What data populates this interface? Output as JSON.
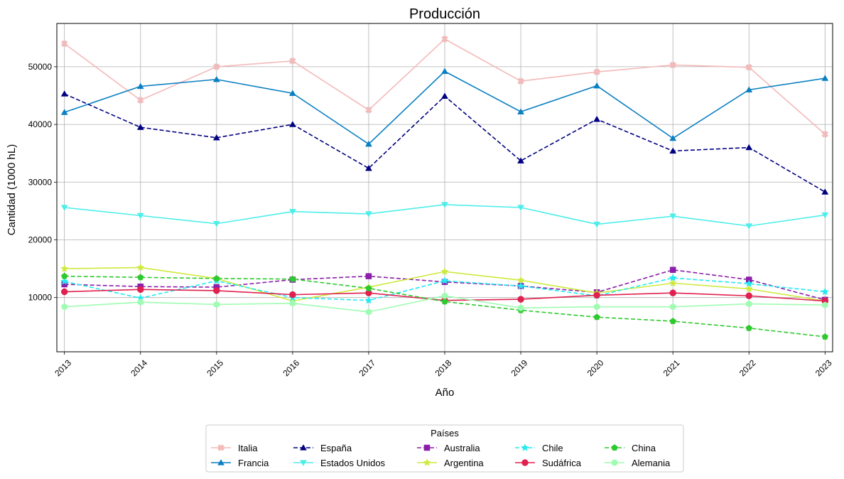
{
  "chart_data": {
    "type": "line",
    "title": "Producción",
    "xlabel": "Año",
    "ylabel": "Cantidad (1000 hL)",
    "x": [
      2013,
      2014,
      2015,
      2016,
      2017,
      2018,
      2019,
      2020,
      2021,
      2022,
      2023
    ],
    "yticks": [
      10000,
      20000,
      30000,
      40000,
      50000
    ],
    "ylim": [
      600,
      57500
    ],
    "grid": true,
    "legend": {
      "title": "Países",
      "placement": "bottom-center",
      "columns": 5
    },
    "series": [
      {
        "name": "Italia",
        "color": "#f4b9b9",
        "dash": "solid",
        "marker": "x-filled",
        "values": [
          54000,
          44200,
          50000,
          51000,
          42500,
          54800,
          47500,
          49100,
          50300,
          49900,
          38300
        ]
      },
      {
        "name": "Francia",
        "color": "#0a7fc2",
        "dash": "solid",
        "marker": "triangle-up",
        "values": [
          42100,
          46600,
          47800,
          45400,
          36600,
          49200,
          42200,
          46700,
          37600,
          46000,
          48000
        ]
      },
      {
        "name": "España",
        "color": "#000080",
        "dash": "dashed",
        "marker": "triangle-up",
        "values": [
          45300,
          39500,
          37700,
          40000,
          32400,
          44900,
          33700,
          40900,
          35400,
          36000,
          28300
        ]
      },
      {
        "name": "Estados Unidos",
        "color": "#4deeea",
        "dash": "solid",
        "marker": "triangle-down",
        "values": [
          25600,
          24200,
          22800,
          24900,
          24500,
          26100,
          25600,
          22700,
          24100,
          22400,
          24300
        ]
      },
      {
        "name": "Australia",
        "color": "#8b1fa9",
        "dash": "dashed",
        "marker": "square",
        "values": [
          12300,
          11900,
          11800,
          13100,
          13700,
          12700,
          12000,
          10900,
          14800,
          13100,
          9600
        ]
      },
      {
        "name": "Argentina",
        "color": "#cdea3c",
        "dash": "solid",
        "marker": "star",
        "values": [
          15000,
          15200,
          13300,
          9400,
          11800,
          14500,
          13000,
          10800,
          12500,
          11500,
          9400
        ]
      },
      {
        "name": "Chile",
        "color": "#22eaf2",
        "dash": "dashed",
        "marker": "star",
        "values": [
          12800,
          9900,
          12900,
          10000,
          9500,
          12900,
          12000,
          10300,
          13400,
          12400,
          11000
        ]
      },
      {
        "name": "Sudáfrica",
        "color": "#e0204f",
        "dash": "solid",
        "marker": "circle",
        "values": [
          11000,
          11400,
          11200,
          10500,
          10800,
          9500,
          9700,
          10400,
          10800,
          10300,
          9400
        ]
      },
      {
        "name": "China",
        "color": "#2ec92e",
        "dash": "dashed",
        "marker": "pentagon",
        "values": [
          13700,
          13500,
          13300,
          13200,
          11600,
          9300,
          7800,
          6600,
          5900,
          4700,
          3200
        ]
      },
      {
        "name": "Alemania",
        "color": "#9ffcb2",
        "dash": "solid",
        "marker": "hexagon",
        "values": [
          8400,
          9200,
          8800,
          9000,
          7500,
          10300,
          8200,
          8400,
          8400,
          8900,
          8700
        ]
      }
    ]
  }
}
